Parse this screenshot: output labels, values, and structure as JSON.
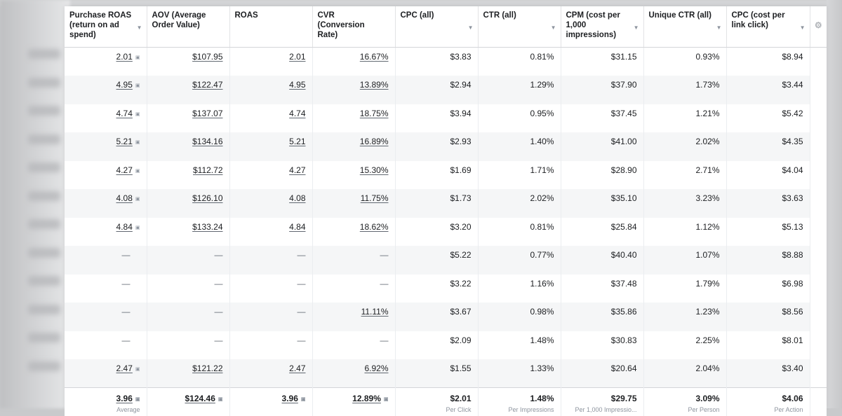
{
  "columns": [
    {
      "label": "Purchase ROAS (return on ad spend)",
      "sortable": true
    },
    {
      "label": "AOV (Average Order Value)",
      "sortable": false
    },
    {
      "label": "ROAS",
      "sortable": false
    },
    {
      "label": "CVR (Conversion Rate)",
      "sortable": false
    },
    {
      "label": "CPC (all)",
      "sortable": true
    },
    {
      "label": "CTR (all)",
      "sortable": true
    },
    {
      "label": "CPM (cost per 1,000 impressions)",
      "sortable": true
    },
    {
      "label": "Unique CTR (all)",
      "sortable": true
    },
    {
      "label": "CPC (cost per link click)",
      "sortable": true
    }
  ],
  "rows": [
    [
      "2.01",
      "$107.95",
      "2.01",
      "16.67%",
      "$3.83",
      "0.81%",
      "$31.15",
      "0.93%",
      "$8.94"
    ],
    [
      "4.95",
      "$122.47",
      "4.95",
      "13.89%",
      "$2.94",
      "1.29%",
      "$37.90",
      "1.73%",
      "$3.44"
    ],
    [
      "4.74",
      "$137.07",
      "4.74",
      "18.75%",
      "$3.94",
      "0.95%",
      "$37.45",
      "1.21%",
      "$5.42"
    ],
    [
      "5.21",
      "$134.16",
      "5.21",
      "16.89%",
      "$2.93",
      "1.40%",
      "$41.00",
      "2.02%",
      "$4.35"
    ],
    [
      "4.27",
      "$112.72",
      "4.27",
      "15.30%",
      "$1.69",
      "1.71%",
      "$28.90",
      "2.71%",
      "$4.04"
    ],
    [
      "4.08",
      "$126.10",
      "4.08",
      "11.75%",
      "$1.73",
      "2.02%",
      "$35.10",
      "3.23%",
      "$3.63"
    ],
    [
      "4.84",
      "$133.24",
      "4.84",
      "18.62%",
      "$3.20",
      "0.81%",
      "$25.84",
      "1.12%",
      "$5.13"
    ],
    [
      "—",
      "—",
      "—",
      "—",
      "$5.22",
      "0.77%",
      "$40.40",
      "1.07%",
      "$8.88"
    ],
    [
      "—",
      "—",
      "—",
      "—",
      "$3.22",
      "1.16%",
      "$37.48",
      "1.79%",
      "$6.98"
    ],
    [
      "—",
      "—",
      "—",
      "11.11%",
      "$3.67",
      "0.98%",
      "$35.86",
      "1.23%",
      "$8.56"
    ],
    [
      "—",
      "—",
      "—",
      "—",
      "$2.09",
      "1.48%",
      "$30.83",
      "2.25%",
      "$8.01"
    ],
    [
      "2.47",
      "$121.22",
      "2.47",
      "6.92%",
      "$1.55",
      "1.33%",
      "$20.64",
      "2.04%",
      "$3.40"
    ]
  ],
  "totals": [
    {
      "value": "3.96",
      "info": true,
      "sub": "Average"
    },
    {
      "value": "$124.46",
      "info": true,
      "sub": ""
    },
    {
      "value": "3.96",
      "info": true,
      "sub": ""
    },
    {
      "value": "12.89%",
      "info": true,
      "sub": ""
    },
    {
      "value": "$2.01",
      "info": false,
      "sub": "Per Click"
    },
    {
      "value": "1.48%",
      "info": false,
      "sub": "Per Impressions"
    },
    {
      "value": "$29.75",
      "info": false,
      "sub": "Per 1,000 Impressio..."
    },
    {
      "value": "3.09%",
      "info": false,
      "sub": "Per Person"
    },
    {
      "value": "$4.06",
      "info": false,
      "sub": "Per Action"
    }
  ],
  "icons": {
    "sort": "chevron-down-icon",
    "info": "info-icon",
    "settings": "gear-icon"
  },
  "colors": {
    "header_border": "#d4d5d8",
    "row_alt": "#f5f6f7",
    "muted": "#8d949e"
  }
}
